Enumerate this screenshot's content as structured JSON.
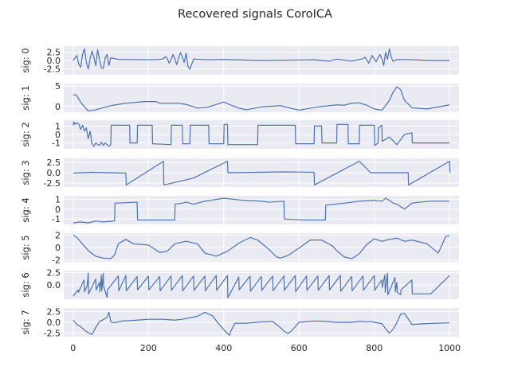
{
  "chart_data": {
    "type": "line",
    "title": "Recovered signals CoroICA",
    "xlim": [
      -25,
      1025
    ],
    "xticks": [
      0,
      200,
      400,
      600,
      800,
      1000
    ],
    "grid": true,
    "line_color": "#4c72b0",
    "panel_color": "#eaeaf2",
    "panels": [
      {
        "name": "sig: 0",
        "ylim": [
          -4.3,
          4.3
        ],
        "yticks": [
          2.5,
          0.0,
          -2.5
        ],
        "x": [
          0,
          5,
          10,
          15,
          20,
          25,
          30,
          35,
          40,
          45,
          50,
          55,
          60,
          65,
          70,
          75,
          80,
          85,
          90,
          95,
          100,
          120,
          200,
          230,
          240,
          245,
          250,
          255,
          260,
          265,
          270,
          275,
          280,
          285,
          290,
          295,
          300,
          305,
          310,
          320,
          360,
          400,
          500,
          640,
          680,
          700,
          740,
          760,
          770,
          775,
          780,
          785,
          790,
          795,
          800,
          805,
          810,
          815,
          820,
          825,
          830,
          835,
          840,
          845,
          850,
          860,
          900,
          950,
          1000
        ],
        "y": [
          0,
          0.8,
          1.5,
          -1.2,
          -2.0,
          1.8,
          3.5,
          -0.5,
          -2.6,
          0.5,
          2.8,
          1.0,
          -1.5,
          3.2,
          0.2,
          -2.2,
          -2.4,
          0.8,
          1.8,
          -1.5,
          0.8,
          0.3,
          0.2,
          0.3,
          0.5,
          1.2,
          0.5,
          -0.8,
          0.2,
          1.8,
          0.5,
          -1.2,
          0.6,
          2.4,
          1.0,
          -0.6,
          2.2,
          -1.8,
          -2.6,
          0.4,
          0.2,
          0.3,
          0,
          0.2,
          -0.2,
          0.4,
          -0.2,
          0.3,
          0.5,
          1.0,
          0.2,
          -0.8,
          0.5,
          1.5,
          0.3,
          -0.4,
          0.8,
          1.8,
          0.6,
          -1.5,
          2.5,
          0.3,
          3.5,
          1.0,
          -0.3,
          0.3,
          0.2,
          0,
          0
        ]
      },
      {
        "name": "sig: 1",
        "ylim": [
          -1.4,
          5.6
        ],
        "yticks": [
          5,
          0
        ],
        "x": [
          0,
          5,
          10,
          20,
          40,
          60,
          80,
          100,
          140,
          190,
          210,
          220,
          230,
          250,
          270,
          280,
          300,
          330,
          360,
          400,
          420,
          440,
          460,
          500,
          550,
          600,
          650,
          700,
          720,
          740,
          760,
          780,
          800,
          820,
          830,
          840,
          850,
          860,
          870,
          880,
          900,
          940,
          1000
        ],
        "y": [
          2.8,
          2.9,
          2.6,
          1.0,
          -1.1,
          -0.8,
          -0.3,
          0.2,
          0.8,
          1.2,
          1.2,
          1.2,
          0.8,
          0.8,
          0.8,
          0.8,
          0.5,
          -0.4,
          -0.1,
          1.1,
          0.3,
          -0.4,
          -0.8,
          -0.1,
          0.2,
          -0.9,
          -0.1,
          0.4,
          0.3,
          0.8,
          0.9,
          0.3,
          -0.6,
          -0.9,
          0.2,
          1.5,
          3.5,
          4.8,
          4.1,
          1.5,
          -0.3,
          -0.6,
          0.4
        ]
      },
      {
        "name": "sig: 2",
        "ylim": [
          -1.7,
          1.7
        ],
        "yticks": [
          1,
          0,
          -1
        ],
        "x": [
          0,
          2,
          5,
          10,
          15,
          20,
          25,
          30,
          35,
          40,
          45,
          50,
          55,
          60,
          65,
          70,
          75,
          80,
          85,
          90,
          95,
          100,
          101,
          150,
          151,
          160,
          170,
          171,
          210,
          211,
          260,
          261,
          290,
          291,
          310,
          311,
          360,
          361,
          400,
          401,
          410,
          411,
          490,
          491,
          590,
          591,
          640,
          641,
          660,
          661,
          700,
          701,
          730,
          731,
          760,
          761,
          800,
          801,
          810,
          811,
          820,
          821,
          840,
          860,
          880,
          900,
          901,
          1000
        ],
        "y": [
          1.1,
          1.5,
          1.2,
          1.4,
          1.2,
          0.6,
          1.1,
          0.4,
          0.8,
          -0.5,
          0.4,
          -1.1,
          -1.4,
          -1.0,
          -1.2,
          -1.3,
          -0.9,
          -1.3,
          -1.0,
          -1.2,
          -1.4,
          -1.2,
          1.1,
          1.1,
          -1.0,
          -1.0,
          -1.0,
          1.1,
          1.1,
          -1.1,
          -1.2,
          1.1,
          1.1,
          -1.1,
          -1.1,
          1.1,
          1.1,
          -1.1,
          -1.1,
          1.2,
          1.2,
          -1.2,
          -1.2,
          1.1,
          1.1,
          -1.1,
          -1.1,
          1.0,
          1.0,
          -1.0,
          -1.0,
          1.2,
          1.2,
          -1.1,
          -1.1,
          1.1,
          1.1,
          -1.3,
          -1.0,
          0.8,
          1.1,
          -0.8,
          -0.3,
          -1.2,
          0.0,
          0.2,
          -1.0,
          -1.0
        ]
      },
      {
        "name": "sig: 3",
        "ylim": [
          -3.5,
          3.5
        ],
        "yticks": [
          2.5,
          0.0,
          -2.5
        ],
        "x": [
          0,
          50,
          100,
          140,
          141,
          240,
          241,
          320,
          410,
          411,
          560,
          640,
          641,
          760,
          790,
          890,
          891,
          1000,
          1001
        ],
        "y": [
          -0.1,
          0.1,
          0.0,
          -0.1,
          -3.0,
          2.8,
          -3.0,
          -1.3,
          2.8,
          0.0,
          0.2,
          0.1,
          -3.0,
          2.8,
          0.0,
          0.0,
          -3.0,
          2.8,
          0.0
        ]
      },
      {
        "name": "sig: 4",
        "ylim": [
          -1.55,
          1.35
        ],
        "yticks": [
          1,
          0,
          -1
        ],
        "x": [
          0,
          20,
          40,
          60,
          80,
          110,
          111,
          170,
          171,
          270,
          271,
          290,
          300,
          310,
          320,
          350,
          400,
          450,
          500,
          520,
          560,
          561,
          620,
          670,
          671,
          720,
          760,
          800,
          820,
          830,
          840,
          850,
          860,
          880,
          900,
          920,
          950,
          1000
        ],
        "y": [
          -1.4,
          -1.3,
          -1.4,
          -1.2,
          -1.3,
          -1.2,
          0.6,
          0.7,
          -1.1,
          -1.1,
          0.5,
          0.6,
          0.7,
          0.6,
          0.5,
          0.8,
          1.1,
          0.9,
          0.8,
          0.7,
          0.8,
          -1.0,
          -1.1,
          -1.1,
          0.4,
          0.6,
          0.8,
          0.9,
          0.8,
          1.1,
          0.9,
          0.6,
          0.5,
          0.0,
          0.6,
          0.7,
          0.8,
          0.8
        ]
      },
      {
        "name": "sig: 5",
        "ylim": [
          -2.3,
          2.3
        ],
        "yticks": [
          2,
          0,
          -2
        ],
        "x": [
          0,
          10,
          20,
          40,
          60,
          80,
          100,
          110,
          120,
          140,
          160,
          200,
          230,
          250,
          270,
          300,
          330,
          350,
          380,
          410,
          440,
          470,
          490,
          520,
          540,
          550,
          570,
          600,
          630,
          660,
          690,
          700,
          720,
          740,
          760,
          780,
          800,
          820,
          840,
          860,
          880,
          900,
          940,
          970,
          990,
          1000
        ],
        "y": [
          2.0,
          1.6,
          0.9,
          -0.5,
          -1.4,
          -1.7,
          -1.8,
          -1.2,
          0.6,
          1.3,
          0.6,
          0.4,
          -0.8,
          -0.6,
          0.6,
          1.0,
          0.6,
          -0.9,
          -1.4,
          -0.6,
          0.7,
          1.6,
          1.2,
          -0.3,
          -1.5,
          -1.7,
          -1.3,
          -0.1,
          1.2,
          1.2,
          0.2,
          -0.5,
          -1.5,
          -1.8,
          -1.0,
          0.5,
          1.4,
          1.0,
          1.3,
          1.5,
          1.0,
          1.2,
          0.6,
          -0.9,
          1.8,
          1.9
        ]
      },
      {
        "name": "sig: 6",
        "ylim": [
          -2.9,
          2.9
        ],
        "yticks": [
          0.0,
          2.5
        ],
        "x": [
          0,
          13,
          14,
          29,
          30,
          37,
          38,
          40,
          41,
          60,
          61,
          70,
          71,
          75,
          76,
          80,
          81,
          90,
          91,
          120,
          121,
          140,
          141,
          170,
          171,
          200,
          201,
          230,
          231,
          260,
          261,
          290,
          291,
          320,
          321,
          350,
          351,
          380,
          381,
          410,
          411,
          440,
          441,
          470,
          471,
          500,
          501,
          530,
          531,
          560,
          561,
          590,
          591,
          620,
          621,
          650,
          651,
          680,
          681,
          710,
          711,
          740,
          741,
          770,
          771,
          800,
          801,
          820,
          821,
          828,
          829,
          835,
          836,
          855,
          856,
          860,
          861,
          870,
          871,
          900,
          901,
          950,
          1000
        ],
        "y": [
          -2.3,
          -1.0,
          -1.5,
          1.0,
          -1.4,
          -0.2,
          0.5,
          2.4,
          -1.8,
          1.2,
          -1.0,
          0.5,
          -1.4,
          2.0,
          -1.2,
          2.3,
          -0.3,
          -2.5,
          -1.0,
          1.8,
          -1.2,
          1.9,
          -1.2,
          1.7,
          -1.0,
          1.8,
          -1.0,
          1.7,
          -1.2,
          1.8,
          -1.1,
          1.9,
          -1.2,
          1.8,
          -1.1,
          1.8,
          -1.2,
          1.9,
          -1.1,
          1.9,
          -2.6,
          1.6,
          -1.0,
          1.8,
          -1.3,
          1.7,
          -1.1,
          1.8,
          -1.2,
          1.8,
          -1.1,
          1.9,
          -1.4,
          1.8,
          -1.1,
          1.8,
          -1.1,
          1.9,
          -1.0,
          1.9,
          -1.3,
          1.7,
          -1.2,
          1.8,
          -1.1,
          1.9,
          -1.1,
          1.0,
          -0.5,
          2.0,
          -1.5,
          2.4,
          -2.0,
          1.5,
          -1.4,
          0.5,
          -1.5,
          -2.0,
          -1.0,
          1.0,
          -1.8,
          -1.8,
          1.9
        ]
      },
      {
        "name": "sig: 7",
        "ylim": [
          -3.3,
          3.3
        ],
        "yticks": [
          2.5,
          0.0,
          -2.5
        ],
        "x": [
          0,
          10,
          20,
          30,
          40,
          50,
          60,
          70,
          80,
          90,
          95,
          100,
          110,
          130,
          170,
          200,
          240,
          270,
          290,
          330,
          350,
          370,
          390,
          410,
          415,
          420,
          430,
          460,
          500,
          530,
          540,
          550,
          560,
          570,
          580,
          600,
          640,
          670,
          700,
          740,
          760,
          780,
          790,
          800,
          820,
          830,
          840,
          850,
          860,
          870,
          880,
          900,
          940,
          1000
        ],
        "y": [
          0.5,
          -0.5,
          -1.0,
          -1.8,
          -2.4,
          -2.8,
          -1.2,
          0.2,
          0.6,
          1.2,
          2.3,
          0.1,
          -0.1,
          0.3,
          0.5,
          0.7,
          0.7,
          0.5,
          0.7,
          1.4,
          2.3,
          1.5,
          -0.7,
          -2.6,
          -3.0,
          -1.8,
          -0.2,
          -0.2,
          0.1,
          0.2,
          -0.5,
          -1.2,
          -2.0,
          -2.6,
          -2.0,
          0.0,
          0.3,
          0.2,
          0.0,
          0.0,
          0.2,
          0.1,
          0.2,
          0.0,
          -0.3,
          -1.5,
          -2.5,
          -1.6,
          -0.1,
          1.9,
          2.1,
          -0.5,
          -0.3,
          -0.1
        ]
      }
    ]
  }
}
